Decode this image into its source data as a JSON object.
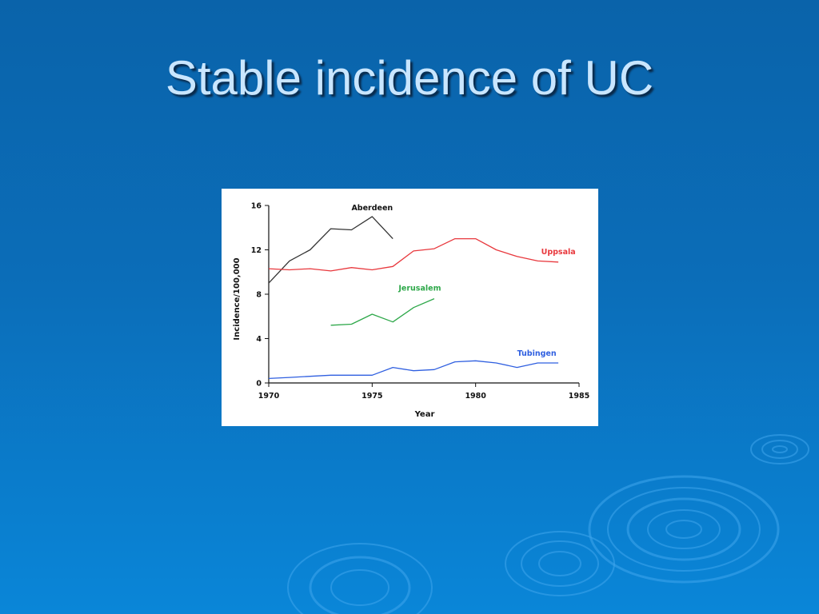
{
  "slide": {
    "title": "Stable incidence of UC"
  },
  "chart_data": {
    "type": "line",
    "title": "",
    "xlabel": "Year",
    "ylabel": "Incidence/100,000",
    "xlim": [
      1970,
      1985
    ],
    "ylim": [
      0,
      16
    ],
    "x_ticks": [
      1970,
      1975,
      1980,
      1985
    ],
    "y_ticks": [
      0,
      4,
      8,
      12,
      16
    ],
    "grid": false,
    "legend": "inline labels",
    "series": [
      {
        "name": "Aberdeen",
        "color": "#333333",
        "x": [
          1970,
          1971,
          1972,
          1973,
          1974,
          1975,
          1976
        ],
        "y": [
          9.0,
          11.0,
          12.0,
          13.9,
          13.8,
          15.0,
          13.0
        ]
      },
      {
        "name": "Uppsala",
        "color": "#e8383d",
        "x": [
          1970,
          1971,
          1972,
          1973,
          1974,
          1975,
          1976,
          1977,
          1978,
          1979,
          1980,
          1981,
          1982,
          1983,
          1984
        ],
        "y": [
          10.3,
          10.2,
          10.3,
          10.1,
          10.4,
          10.2,
          10.5,
          11.9,
          12.1,
          13.0,
          13.0,
          12.0,
          11.4,
          11.0,
          10.9
        ]
      },
      {
        "name": "Jerusalem",
        "color": "#2ea84a",
        "x": [
          1973,
          1974,
          1975,
          1976,
          1977,
          1978
        ],
        "y": [
          5.2,
          5.3,
          6.2,
          5.5,
          6.8,
          7.6
        ]
      },
      {
        "name": "Tubingen",
        "color": "#2f5fe0",
        "x": [
          1970,
          1971,
          1972,
          1973,
          1974,
          1975,
          1976,
          1977,
          1978,
          1979,
          1980,
          1981,
          1982,
          1983,
          1984
        ],
        "y": [
          0.4,
          0.5,
          0.6,
          0.7,
          0.7,
          0.7,
          1.4,
          1.1,
          1.2,
          1.9,
          2.0,
          1.8,
          1.4,
          1.8,
          1.8
        ]
      }
    ]
  }
}
